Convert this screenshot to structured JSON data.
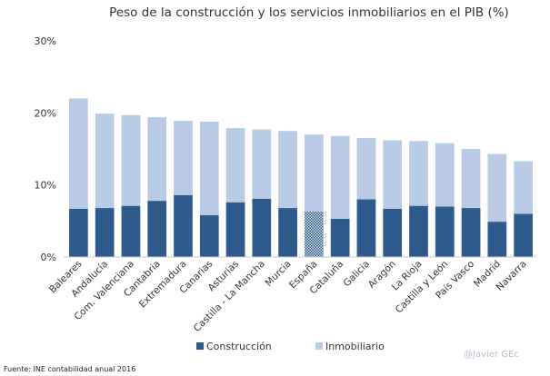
{
  "chart_data": {
    "type": "bar",
    "stacked": true,
    "title": "Peso de la construcción y los servicios inmobiliarios en el PIB (%)",
    "xlabel": "",
    "ylabel": "",
    "ylim": [
      0,
      30
    ],
    "yticks": [
      0,
      10,
      20,
      30
    ],
    "ytick_labels": [
      "0%",
      "10%",
      "20%",
      "30%"
    ],
    "grid": false,
    "legend_position": "bottom",
    "categories": [
      "Baleares",
      "Andalucía",
      "Com. Valenciana",
      "Cantabria",
      "Extremadura",
      "Canarias",
      "Asturias",
      "Castilla - La Mancha",
      "Murcia",
      "España",
      "Cataluña",
      "Galicia",
      "Aragón",
      "La Rioja",
      "Castilla y León",
      "País Vasco",
      "Madrid",
      "Navarra"
    ],
    "highlight_category": "España",
    "series": [
      {
        "name": "Construcción",
        "color": "#2e5a8c",
        "values": [
          6.7,
          6.8,
          7.1,
          7.8,
          8.6,
          5.8,
          7.6,
          8.1,
          6.8,
          6.3,
          5.3,
          8.0,
          6.7,
          7.1,
          7.0,
          6.8,
          4.9,
          6.0
        ]
      },
      {
        "name": "Inmobiliario",
        "color": "#b9cae5",
        "values": [
          15.3,
          13.1,
          12.6,
          11.6,
          10.3,
          13.0,
          10.3,
          9.6,
          10.7,
          10.7,
          11.5,
          8.5,
          9.5,
          9.0,
          8.8,
          8.2,
          9.4,
          7.3
        ]
      }
    ]
  },
  "source_note": "Fuente: INE contabilidad anual 2016",
  "credit": "@Javier GEc"
}
